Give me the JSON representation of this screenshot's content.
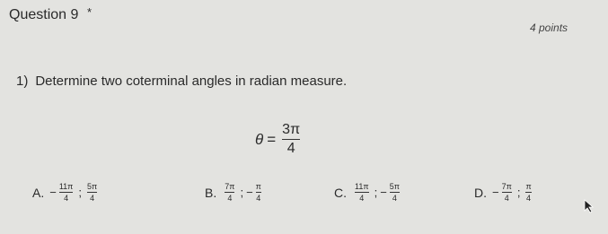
{
  "header": {
    "title": "Question 9",
    "required": "*",
    "points": "4 points"
  },
  "question": {
    "number": "1)",
    "prompt": "Determine two coterminal angles in radian measure."
  },
  "given": {
    "variable": "θ",
    "equals": "=",
    "numerator": "3π",
    "denominator": "4"
  },
  "options": [
    {
      "letter": "A.",
      "separator": ";",
      "answers": [
        {
          "sign": "−",
          "numerator": "11π",
          "denominator": "4"
        },
        {
          "numerator": "5π",
          "denominator": "4"
        }
      ]
    },
    {
      "letter": "B.",
      "separator": ";",
      "answers": [
        {
          "numerator": "7π",
          "denominator": "4"
        },
        {
          "sign": "−",
          "numerator": "π",
          "denominator": "4"
        }
      ]
    },
    {
      "letter": "C.",
      "separator": ";",
      "answers": [
        {
          "numerator": "11π",
          "denominator": "4"
        },
        {
          "sign": "−",
          "numerator": "5π",
          "denominator": "4"
        }
      ]
    },
    {
      "letter": "D.",
      "separator": ";",
      "answers": [
        {
          "sign": "−",
          "numerator": "7π",
          "denominator": "4"
        },
        {
          "numerator": "π",
          "denominator": "4"
        }
      ]
    }
  ]
}
